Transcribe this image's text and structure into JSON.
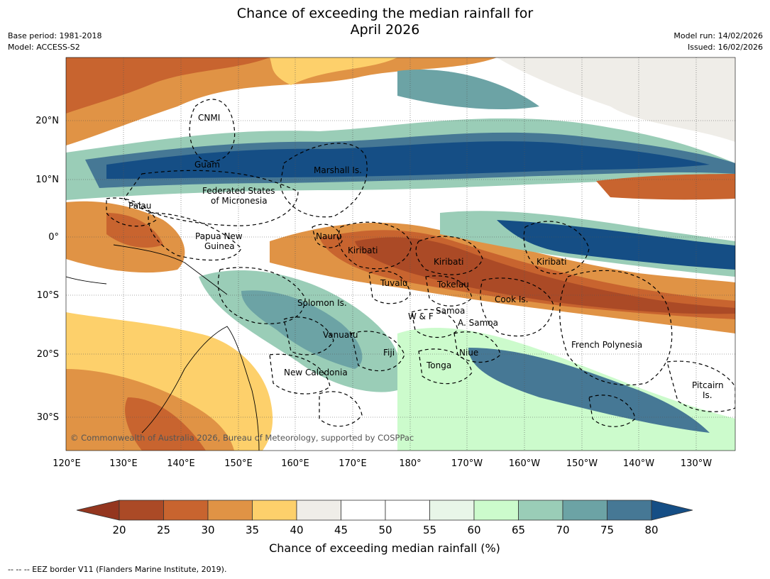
{
  "title_line1": "Chance of exceeding the median rainfall for",
  "title_line2": "April 2026",
  "meta_left": {
    "base_period": "Base period: 1981-2018",
    "model": "Model: ACCESS-S2"
  },
  "meta_right": {
    "model_run": "Model run: 14/02/2026",
    "issued": "Issued: 16/02/2026"
  },
  "map": {
    "lon_ticks": [
      "120°E",
      "130°E",
      "140°E",
      "150°E",
      "160°E",
      "170°E",
      "180°",
      "170°W",
      "160°W",
      "150°W",
      "140°W",
      "130°W"
    ],
    "lat_ticks": [
      "20°N",
      "10°N",
      "0°",
      "10°S",
      "20°S",
      "30°S"
    ],
    "copyright": "© Commonwealth of Australia 2026, Bureau of Meteorology, supported by COSPPac",
    "regions": [
      {
        "label": "CNMI"
      },
      {
        "label": "Guam"
      },
      {
        "label": "Marshall Is."
      },
      {
        "label": "Palau"
      },
      {
        "label": "Federated States"
      },
      {
        "label": "of Micronesia"
      },
      {
        "label": "Papua New"
      },
      {
        "label": "Guinea"
      },
      {
        "label": "Nauru"
      },
      {
        "label": "Kiribati"
      },
      {
        "label": "Kiribati"
      },
      {
        "label": "Kiribati"
      },
      {
        "label": "Tuvalu"
      },
      {
        "label": "Tokelau"
      },
      {
        "label": "Cook Is."
      },
      {
        "label": "Solomon Is."
      },
      {
        "label": "Samoa"
      },
      {
        "label": "W & F"
      },
      {
        "label": "A. Samoa"
      },
      {
        "label": "Vanuatu"
      },
      {
        "label": "Fiji"
      },
      {
        "label": "Niue"
      },
      {
        "label": "French Polynesia"
      },
      {
        "label": "Tonga"
      },
      {
        "label": "New Caledonia"
      },
      {
        "label": "Pitcairn"
      },
      {
        "label": "Is."
      }
    ]
  },
  "colorbar": {
    "ticks": [
      "20",
      "25",
      "30",
      "35",
      "40",
      "45",
      "50",
      "55",
      "60",
      "65",
      "70",
      "75",
      "80"
    ],
    "colors": [
      "#ab4a26",
      "#c8642f",
      "#e09345",
      "#fdd06b",
      "#efede8",
      "#ffffff",
      "#ffffff",
      "#e8f6e8",
      "#ccfbcc",
      "#9acdb7",
      "#6ca3a5",
      "#467895"
    ],
    "low_extend_color": "#94361f",
    "high_extend_color": "#154e85",
    "label": "Chance of exceeding median rainfall (%)"
  },
  "footer": "--  --  -- EEZ border V11 (Flanders Marine Institute, 2019)."
}
